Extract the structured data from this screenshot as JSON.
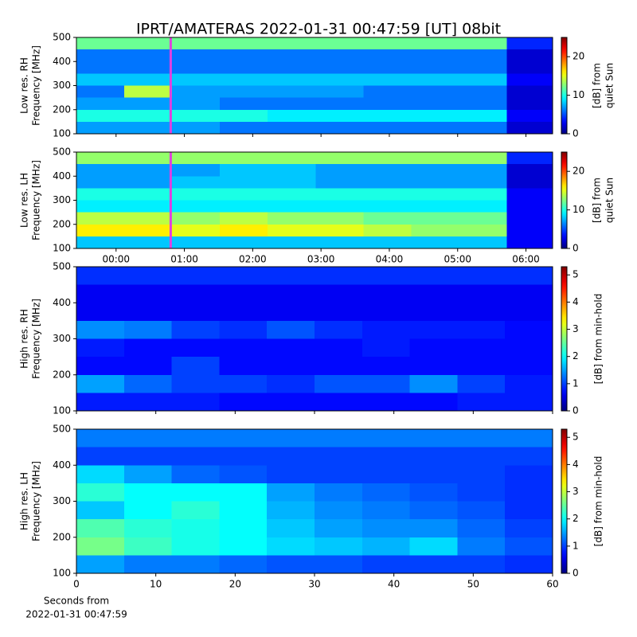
{
  "chart_data": [
    {
      "type": "heatmap",
      "title": "IPRT/AMATERAS 2022-01-31 00:47:59 [UT]   08bit",
      "colormap": "jet",
      "ylabel": [
        "Low res. RH",
        "Frequency [MHz]"
      ],
      "clabel": [
        "[dB] from",
        "quiet Sun"
      ],
      "x_edges": [
        -0.58,
        0.12,
        0.82,
        1.52,
        2.22,
        2.92,
        3.62,
        4.32,
        5.02,
        5.72,
        6.39
      ],
      "y_edges": [
        100,
        150,
        200,
        250,
        300,
        350,
        400,
        450,
        500
      ],
      "z": [
        [
          7,
          7,
          7,
          6,
          6,
          6,
          6,
          6,
          6,
          2
        ],
        [
          10,
          10,
          10,
          10,
          9,
          9,
          9,
          9,
          9,
          3
        ],
        [
          7,
          7,
          7,
          6,
          6,
          6,
          6,
          6,
          6,
          2
        ],
        [
          6,
          14,
          7,
          7,
          7,
          7,
          6,
          6,
          6,
          2
        ],
        [
          8,
          8,
          8,
          8,
          8,
          8,
          8,
          8,
          8,
          3
        ],
        [
          6,
          6,
          6,
          6,
          6,
          6,
          6,
          6,
          6,
          2
        ],
        [
          6,
          6,
          6,
          6,
          6,
          6,
          6,
          6,
          6,
          2
        ],
        [
          12,
          12,
          12,
          12,
          12,
          12,
          12,
          12,
          12,
          4
        ]
      ],
      "ylim": [
        100,
        500
      ],
      "yticks": [
        100,
        200,
        300,
        400,
        500
      ],
      "clim": [
        0,
        25
      ],
      "cticks": [
        0,
        10,
        20
      ],
      "marker_x": 0.8,
      "marker_color": "#e040e0"
    },
    {
      "type": "heatmap",
      "colormap": "jet",
      "ylabel": [
        "Low res. LH",
        "Frequency [MHz]"
      ],
      "clabel": [
        "[dB] from",
        "quiet Sun"
      ],
      "x_edges": [
        -0.58,
        0.12,
        0.82,
        1.52,
        2.22,
        2.92,
        3.62,
        4.32,
        5.02,
        5.72,
        6.39
      ],
      "y_edges": [
        100,
        150,
        200,
        250,
        300,
        350,
        400,
        450,
        500
      ],
      "z": [
        [
          8,
          8,
          8,
          8,
          8,
          8,
          8,
          8,
          8,
          3
        ],
        [
          16,
          16,
          15,
          16,
          15,
          15,
          14,
          13,
          13,
          3
        ],
        [
          14,
          14,
          13,
          14,
          13,
          13,
          12,
          12,
          12,
          3
        ],
        [
          9,
          9,
          9,
          9,
          9,
          9,
          9,
          9,
          9,
          3
        ],
        [
          10,
          10,
          10,
          10,
          10,
          10,
          10,
          10,
          10,
          3
        ],
        [
          7,
          7,
          8,
          8,
          8,
          7,
          7,
          7,
          7,
          2
        ],
        [
          7,
          7,
          7,
          8,
          8,
          7,
          7,
          7,
          7,
          2
        ],
        [
          13,
          13,
          13,
          13,
          13,
          13,
          13,
          13,
          13,
          4
        ]
      ],
      "xlim": [
        -0.58,
        6.39
      ],
      "xticks": [
        {
          "value": 0,
          "label": "00:00"
        },
        {
          "value": 1,
          "label": "01:00"
        },
        {
          "value": 2,
          "label": "02:00"
        },
        {
          "value": 3,
          "label": "03:00"
        },
        {
          "value": 4,
          "label": "04:00"
        },
        {
          "value": 5,
          "label": "05:00"
        },
        {
          "value": 6,
          "label": "06:00"
        }
      ],
      "ylim": [
        100,
        500
      ],
      "yticks": [
        100,
        200,
        300,
        400,
        500
      ],
      "clim": [
        0,
        25
      ],
      "cticks": [
        0,
        10,
        20
      ],
      "marker_x": 0.8,
      "marker_color": "#e040e0"
    },
    {
      "type": "heatmap",
      "colormap": "jet",
      "ylabel": [
        "High res. RH",
        "Frequency [MHz]"
      ],
      "clabel": [
        "[dB] from min-hold"
      ],
      "x_edges": [
        0,
        6,
        12,
        18,
        24,
        30,
        36,
        42,
        48,
        54,
        60
      ],
      "y_edges": [
        100,
        150,
        200,
        250,
        300,
        350,
        400,
        450,
        500
      ],
      "z": [
        [
          0.8,
          0.8,
          0.8,
          0.7,
          0.7,
          0.7,
          0.7,
          0.7,
          0.8,
          0.8
        ],
        [
          1.5,
          1.2,
          1.0,
          1.0,
          0.9,
          1.1,
          1.1,
          1.4,
          1.0,
          0.8
        ],
        [
          0.7,
          0.7,
          1.0,
          0.7,
          0.7,
          0.7,
          0.7,
          0.7,
          0.7,
          0.7
        ],
        [
          0.8,
          0.7,
          0.7,
          0.7,
          0.7,
          0.7,
          0.8,
          0.7,
          0.7,
          0.7
        ],
        [
          1.4,
          1.3,
          1.0,
          0.9,
          1.1,
          0.9,
          0.8,
          0.8,
          0.8,
          0.7
        ],
        [
          0.6,
          0.6,
          0.6,
          0.6,
          0.6,
          0.6,
          0.6,
          0.6,
          0.6,
          0.6
        ],
        [
          0.6,
          0.6,
          0.6,
          0.6,
          0.6,
          0.6,
          0.6,
          0.6,
          0.6,
          0.6
        ],
        [
          0.9,
          0.9,
          0.9,
          0.9,
          0.9,
          0.9,
          0.9,
          0.9,
          0.9,
          0.9
        ]
      ],
      "ylim": [
        100,
        500
      ],
      "yticks": [
        100,
        200,
        300,
        400,
        500
      ],
      "clim": [
        0,
        5.3
      ],
      "cticks": [
        0,
        1,
        2,
        3,
        4,
        5
      ]
    },
    {
      "type": "heatmap",
      "colormap": "jet",
      "ylabel": [
        "High res. LH",
        "Frequency [MHz]"
      ],
      "clabel": [
        "[dB] from min-hold"
      ],
      "xlabel": [
        "Seconds from",
        "2022-01-31 00:47:59"
      ],
      "x_edges": [
        0,
        6,
        12,
        18,
        24,
        30,
        36,
        42,
        48,
        54,
        60
      ],
      "y_edges": [
        100,
        150,
        200,
        250,
        300,
        350,
        400,
        450,
        500
      ],
      "z": [
        [
          1.5,
          1.3,
          1.3,
          1.2,
          1.1,
          1.1,
          1.0,
          1.0,
          1.0,
          0.9
        ],
        [
          2.6,
          2.3,
          2.1,
          2.0,
          1.8,
          1.7,
          1.6,
          1.8,
          1.3,
          1.1
        ],
        [
          2.4,
          2.2,
          2.1,
          2.0,
          1.7,
          1.5,
          1.4,
          1.4,
          1.2,
          1.0
        ],
        [
          1.7,
          2.0,
          2.2,
          2.0,
          1.6,
          1.4,
          1.3,
          1.2,
          1.1,
          0.9
        ],
        [
          2.2,
          2.0,
          2.0,
          2.0,
          1.5,
          1.3,
          1.2,
          1.1,
          1.0,
          0.9
        ],
        [
          1.8,
          1.5,
          1.2,
          1.1,
          1.0,
          1.0,
          1.0,
          1.0,
          1.0,
          0.9
        ],
        [
          1.0,
          1.0,
          1.0,
          1.0,
          1.0,
          1.0,
          1.0,
          1.0,
          1.0,
          1.0
        ],
        [
          1.3,
          1.3,
          1.3,
          1.3,
          1.3,
          1.3,
          1.3,
          1.3,
          1.3,
          1.3
        ]
      ],
      "xlim": [
        0,
        60
      ],
      "xticks": [
        0,
        10,
        20,
        30,
        40,
        50,
        60
      ],
      "ylim": [
        100,
        500
      ],
      "yticks": [
        100,
        200,
        300,
        400,
        500
      ],
      "clim": [
        0,
        5.3
      ],
      "cticks": [
        0,
        1,
        2,
        3,
        4,
        5
      ]
    }
  ]
}
